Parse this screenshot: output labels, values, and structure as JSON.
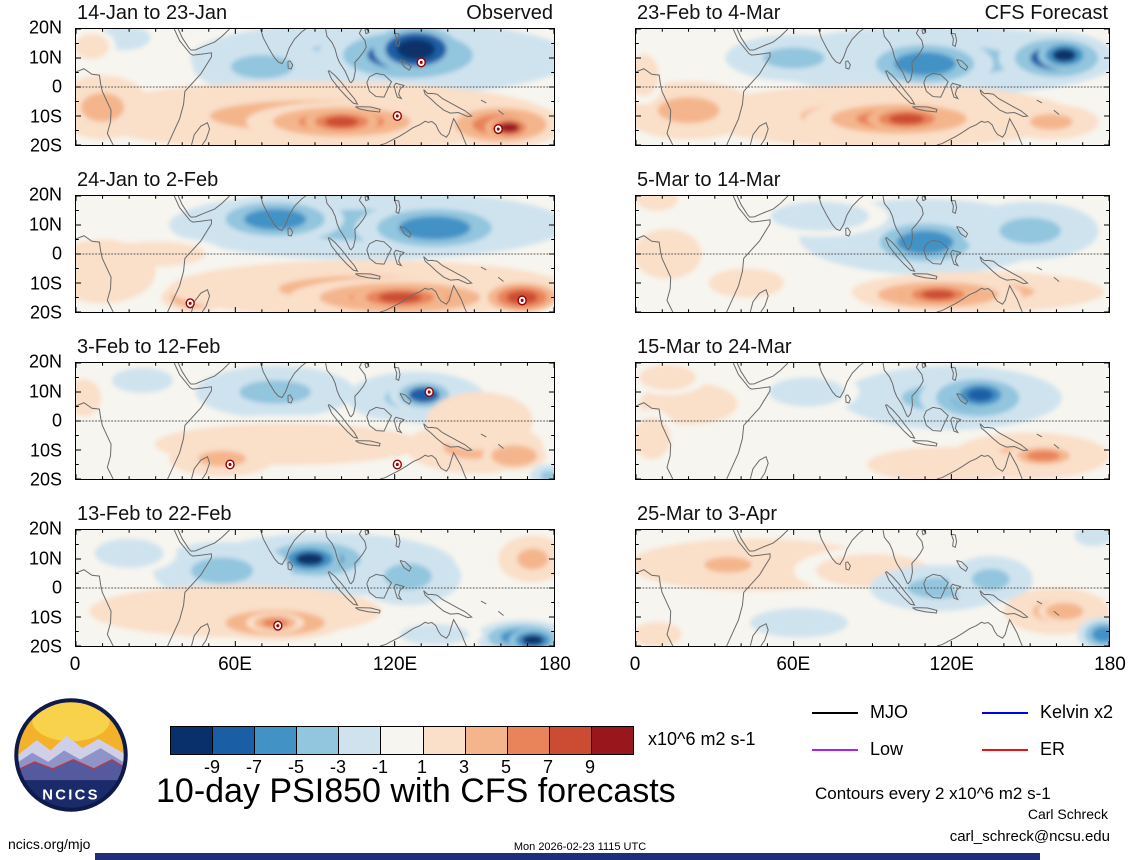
{
  "axes_note": "longitude 0-180E, latitude 20S-20N",
  "chart_data": {
    "type": "heatmap",
    "x_range": [
      0,
      180
    ],
    "y_range": [
      -20,
      20
    ],
    "x_ticks": [
      "0",
      "60E",
      "120E",
      "180"
    ],
    "y_ticks": [
      "20N",
      "10N",
      "0",
      "10S",
      "20S"
    ],
    "colorbar": {
      "levels": [
        -9,
        -7,
        -5,
        -3,
        -1,
        1,
        3,
        5,
        7,
        9
      ],
      "tick_labels": [
        "-9",
        "-7",
        "-5",
        "-3",
        "-1",
        "1",
        "3",
        "5",
        "7",
        "9"
      ],
      "colors": [
        "#08306b",
        "#1a5fa6",
        "#4292c6",
        "#92c5de",
        "#cfe3ef",
        "#f7f5ef",
        "#fadfc9",
        "#f4b58c",
        "#e8835a",
        "#cc4c33",
        "#99161d"
      ],
      "units_label": "x10^6 m2 s-1"
    },
    "panels": [
      {
        "title": "14-Jan to 23-Jan",
        "subtitle": "Observed",
        "blobs": [
          [
            115,
            10,
            72,
            13,
            -4
          ],
          [
            125,
            11,
            34,
            11,
            -7
          ],
          [
            128,
            13,
            16,
            8,
            -11
          ],
          [
            70,
            7,
            26,
            9,
            -3
          ],
          [
            18,
            17,
            14,
            6,
            -2
          ],
          [
            90,
            -10,
            88,
            12,
            4
          ],
          [
            100,
            -12,
            36,
            7,
            6
          ],
          [
            100,
            -12,
            14,
            4,
            8
          ],
          [
            160,
            -13,
            24,
            8,
            7
          ],
          [
            163,
            -14,
            9,
            4,
            10
          ],
          [
            10,
            -7,
            18,
            11,
            4
          ],
          [
            6,
            14,
            9,
            6,
            2
          ]
        ],
        "markers": [
          [
            130,
            8.5
          ],
          [
            121,
            -10
          ],
          [
            159,
            -14.5
          ]
        ]
      },
      {
        "title": "24-Jan to 2-Feb",
        "subtitle": "",
        "blobs": [
          [
            110,
            10,
            75,
            12,
            -4
          ],
          [
            75,
            12,
            26,
            8,
            -6
          ],
          [
            135,
            9,
            30,
            9,
            -6
          ],
          [
            30,
            0,
            26,
            6,
            2
          ],
          [
            10,
            -6,
            20,
            11,
            3
          ],
          [
            45,
            -15,
            13,
            5,
            5
          ],
          [
            110,
            -12,
            75,
            10,
            4
          ],
          [
            122,
            -15,
            42,
            7,
            6
          ],
          [
            122,
            -15,
            18,
            4,
            9
          ],
          [
            168,
            -15,
            13,
            5,
            8
          ]
        ],
        "markers": [
          [
            43,
            -17
          ],
          [
            168,
            -16
          ]
        ]
      },
      {
        "title": "3-Feb to 12-Feb",
        "subtitle": "",
        "blobs": [
          [
            75,
            10,
            30,
            9,
            -3
          ],
          [
            25,
            14,
            16,
            6,
            -2
          ],
          [
            128,
            8,
            26,
            9,
            -4
          ],
          [
            131,
            9,
            13,
            6,
            -7
          ],
          [
            3,
            8,
            9,
            9,
            2
          ],
          [
            80,
            -8,
            70,
            10,
            2
          ],
          [
            55,
            -13,
            20,
            6,
            4
          ],
          [
            150,
            -9,
            26,
            9,
            4
          ],
          [
            165,
            -12,
            12,
            5,
            5
          ],
          [
            152,
            0,
            20,
            10,
            3
          ],
          [
            178,
            -19,
            7,
            4,
            -3
          ]
        ],
        "markers": [
          [
            133,
            10
          ],
          [
            58,
            -15
          ],
          [
            121,
            -15
          ]
        ]
      },
      {
        "title": "13-Feb to 22-Feb",
        "subtitle": "",
        "blobs": [
          [
            95,
            8,
            48,
            11,
            -4
          ],
          [
            90,
            10,
            24,
            8,
            -7
          ],
          [
            88,
            10,
            12,
            5,
            -9
          ],
          [
            125,
            4,
            20,
            10,
            -4
          ],
          [
            55,
            6,
            26,
            10,
            -3
          ],
          [
            20,
            12,
            18,
            7,
            -2
          ],
          [
            60,
            -8,
            55,
            9,
            3
          ],
          [
            75,
            -12,
            26,
            6,
            5
          ],
          [
            75,
            -12,
            11,
            3.5,
            7
          ],
          [
            172,
            10,
            13,
            8,
            4
          ],
          [
            168,
            -17,
            18,
            6,
            -5
          ],
          [
            172,
            -18,
            9,
            4,
            -9
          ],
          [
            135,
            -16,
            18,
            5,
            -2
          ]
        ],
        "markers": [
          [
            76,
            -13
          ]
        ]
      },
      {
        "title": "23-Feb to 4-Mar",
        "subtitle": "CFS Forecast",
        "blobs": [
          [
            115,
            9,
            68,
            12,
            -4
          ],
          [
            110,
            8,
            26,
            9,
            -6
          ],
          [
            160,
            10,
            22,
            9,
            -7
          ],
          [
            163,
            11,
            10,
            5,
            -9
          ],
          [
            60,
            10,
            26,
            8,
            -3
          ],
          [
            95,
            -10,
            72,
            11,
            4
          ],
          [
            100,
            -11,
            36,
            7,
            7
          ],
          [
            103,
            -11,
            15,
            4,
            9
          ],
          [
            20,
            -8,
            26,
            10,
            4
          ],
          [
            3,
            4,
            8,
            10,
            2
          ],
          [
            158,
            -12,
            18,
            6,
            4
          ]
        ],
        "markers": []
      },
      {
        "title": "5-Mar to 14-Mar",
        "subtitle": "",
        "blobs": [
          [
            110,
            6,
            48,
            13,
            -4
          ],
          [
            110,
            4,
            24,
            9,
            -6
          ],
          [
            70,
            13,
            26,
            7,
            -2
          ],
          [
            150,
            8,
            26,
            10,
            -3
          ],
          [
            130,
            -13,
            48,
            7,
            4
          ],
          [
            115,
            -14,
            32,
            6,
            6
          ],
          [
            115,
            -14,
            14,
            3.5,
            9
          ],
          [
            12,
            0,
            18,
            12,
            2
          ],
          [
            42,
            -10,
            20,
            7,
            2
          ],
          [
            8,
            19,
            8,
            4,
            3
          ]
        ],
        "markers": []
      },
      {
        "title": "15-Mar to 24-Mar",
        "subtitle": "",
        "blobs": [
          [
            120,
            8,
            42,
            11,
            -3
          ],
          [
            130,
            8,
            22,
            9,
            -6
          ],
          [
            131,
            9,
            11,
            5,
            -8
          ],
          [
            65,
            10,
            20,
            7,
            -2
          ],
          [
            150,
            -12,
            30,
            8,
            4
          ],
          [
            155,
            -12,
            14,
            4,
            6
          ],
          [
            118,
            -15,
            30,
            6,
            3
          ],
          [
            20,
            6,
            26,
            10,
            2
          ],
          [
            6,
            -6,
            10,
            10,
            2
          ],
          [
            12,
            15,
            15,
            6,
            2
          ]
        ],
        "markers": []
      },
      {
        "title": "25-Mar to 3-Apr",
        "subtitle": "",
        "blobs": [
          [
            45,
            8,
            48,
            9,
            3
          ],
          [
            35,
            8,
            20,
            6,
            4
          ],
          [
            90,
            6,
            30,
            8,
            2
          ],
          [
            115,
            0,
            26,
            8,
            -3
          ],
          [
            135,
            3,
            16,
            8,
            -4
          ],
          [
            62,
            -12,
            26,
            7,
            -2
          ],
          [
            160,
            -8,
            20,
            8,
            4
          ],
          [
            163,
            -8,
            10,
            4,
            5
          ],
          [
            178,
            -16,
            10,
            6,
            -5
          ],
          [
            174,
            18,
            10,
            5,
            -2
          ],
          [
            8,
            -16,
            13,
            6,
            2
          ]
        ],
        "markers": []
      }
    ]
  },
  "legend": {
    "items": [
      {
        "label": "MJO",
        "color": "#000000"
      },
      {
        "label": "Kelvin x2",
        "color": "#0000ee"
      },
      {
        "label": "Low",
        "color": "#aa22ee"
      },
      {
        "label": "ER",
        "color": "#ee1111"
      }
    ]
  },
  "footer": {
    "title": "10-day PSI850 with CFS forecasts",
    "contours_note": "Contours every 2 x10^6 m2 s-1",
    "credit": "Carl Schreck",
    "email": "carl_schreck@ncsu.edu",
    "site": "ncics.org/mjo",
    "timestamp": "Mon 2026-02-23 1115 UTC",
    "logo_text": "NCICS"
  }
}
